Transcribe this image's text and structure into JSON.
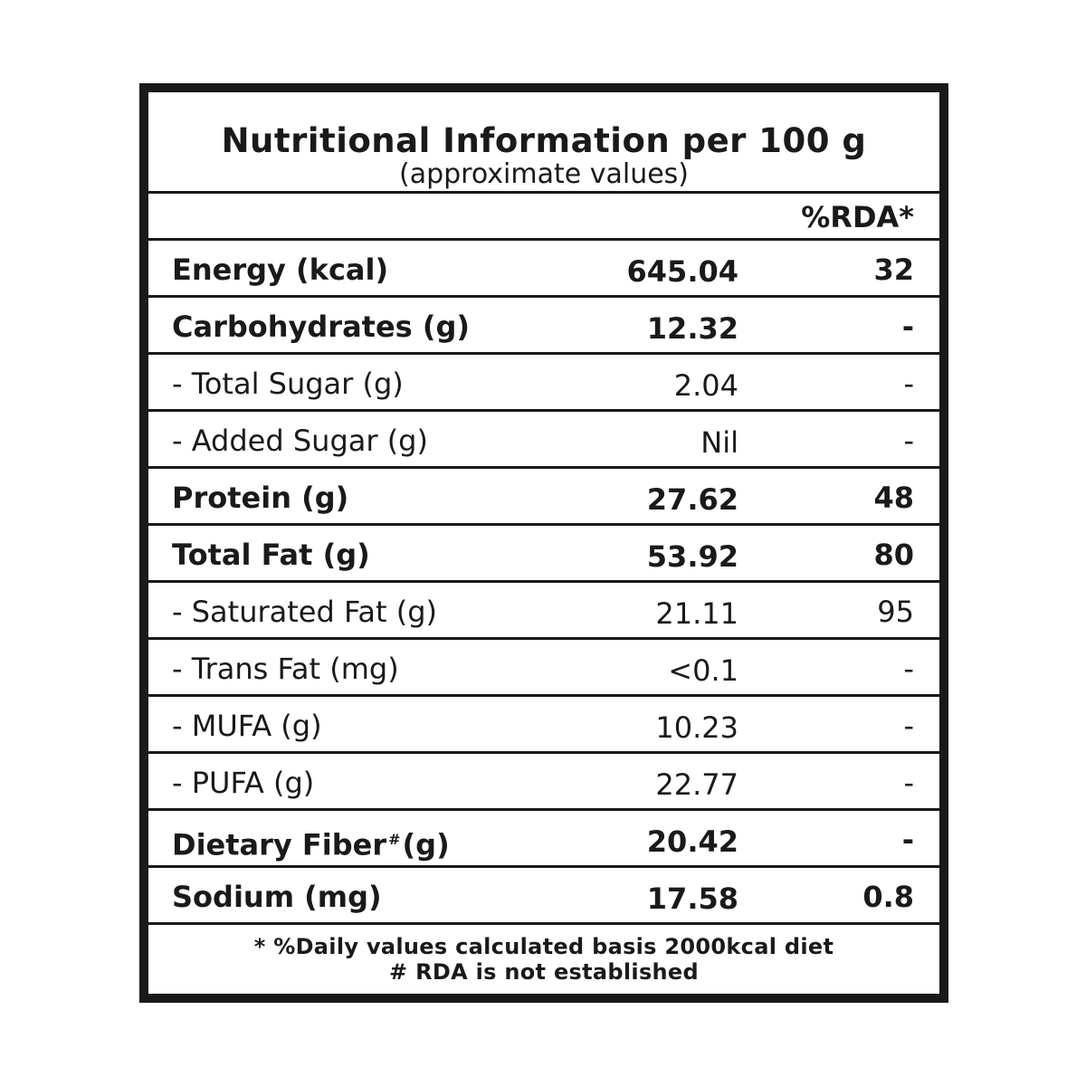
{
  "header": {
    "title": "Nutritional Information per 100 g",
    "subtitle": "(approximate values)",
    "rda_column": "%RDA*"
  },
  "rows": [
    {
      "name": "Energy (kcal)",
      "amount": "645.04",
      "rda": "32",
      "bold": true
    },
    {
      "name": "Carbohydrates (g)",
      "amount": "12.32",
      "rda": "-",
      "bold": true
    },
    {
      "name": "- Total Sugar (g)",
      "amount": "2.04",
      "rda": "-",
      "bold": false
    },
    {
      "name": "- Added Sugar (g)",
      "amount": "Nil",
      "rda": "-",
      "bold": false
    },
    {
      "name": "Protein (g)",
      "amount": "27.62",
      "rda": "48",
      "bold": true
    },
    {
      "name": "Total Fat (g)",
      "amount": "53.92",
      "rda": "80",
      "bold": true
    },
    {
      "name": "- Saturated Fat (g)",
      "amount": "21.11",
      "rda": "95",
      "bold": false
    },
    {
      "name": "- Trans Fat (mg)",
      "amount": "<0.1",
      "rda": "-",
      "bold": false
    },
    {
      "name": "- MUFA (g)",
      "amount": "10.23",
      "rda": "-",
      "bold": false
    },
    {
      "name": "- PUFA (g)",
      "amount": "22.77",
      "rda": "-",
      "bold": false
    },
    {
      "name": "Dietary Fiber",
      "name_mark": "#",
      "name_unit": "(g)",
      "amount": "20.42",
      "rda": "-",
      "bold": true
    },
    {
      "name": "Sodium (mg)",
      "amount": "17.58",
      "rda": "0.8",
      "bold": true
    }
  ],
  "footer": {
    "note_1": "* %Daily values calculated basis 2000kcal diet",
    "note_2": "# RDA is not established"
  },
  "colors": {
    "border": "#1a1a1a",
    "background": "#ffffff",
    "text": "#1a1a1a"
  }
}
